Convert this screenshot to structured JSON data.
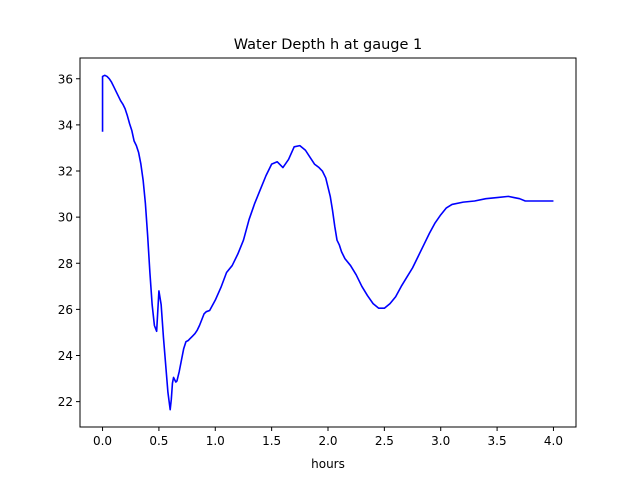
{
  "chart_data": {
    "type": "line",
    "title": "Water Depth h at gauge 1",
    "xlabel": "hours",
    "ylabel": "",
    "xlim": [
      -0.2,
      4.2
    ],
    "ylim": [
      20.9,
      36.9
    ],
    "xticks": [
      0.0,
      0.5,
      1.0,
      1.5,
      2.0,
      2.5,
      3.0,
      3.5,
      4.0
    ],
    "xtick_labels": [
      "0.0",
      "0.5",
      "1.0",
      "1.5",
      "2.0",
      "2.5",
      "3.0",
      "3.5",
      "4.0"
    ],
    "yticks": [
      22,
      24,
      26,
      28,
      30,
      32,
      34,
      36
    ],
    "ytick_labels": [
      "22",
      "24",
      "26",
      "28",
      "30",
      "32",
      "34",
      "36"
    ],
    "grid": false,
    "series": [
      {
        "color": "#0000ff",
        "x": [
          0.0,
          0.0,
          0.02,
          0.04,
          0.06,
          0.08,
          0.1,
          0.12,
          0.14,
          0.16,
          0.18,
          0.2,
          0.22,
          0.24,
          0.26,
          0.28,
          0.3,
          0.32,
          0.34,
          0.36,
          0.38,
          0.4,
          0.42,
          0.44,
          0.46,
          0.48,
          0.5,
          0.52,
          0.54,
          0.56,
          0.58,
          0.6,
          0.61,
          0.62,
          0.63,
          0.64,
          0.65,
          0.66,
          0.68,
          0.7,
          0.72,
          0.73,
          0.74,
          0.76,
          0.77,
          0.78,
          0.8,
          0.82,
          0.84,
          0.86,
          0.88,
          0.9,
          0.92,
          0.95,
          1.0,
          1.05,
          1.1,
          1.15,
          1.2,
          1.25,
          1.3,
          1.35,
          1.4,
          1.45,
          1.5,
          1.55,
          1.6,
          1.65,
          1.7,
          1.75,
          1.8,
          1.84,
          1.88,
          1.92,
          1.95,
          1.98,
          2.0,
          2.02,
          2.04,
          2.06,
          2.08,
          2.1,
          2.12,
          2.15,
          2.2,
          2.25,
          2.3,
          2.35,
          2.4,
          2.45,
          2.5,
          2.55,
          2.6,
          2.65,
          2.7,
          2.75,
          2.8,
          2.85,
          2.9,
          2.95,
          3.0,
          3.05,
          3.1,
          3.2,
          3.3,
          3.4,
          3.5,
          3.6,
          3.65,
          3.7,
          3.75,
          3.8,
          3.85,
          3.88,
          3.92,
          3.96,
          4.0
        ],
        "y": [
          33.7,
          36.1,
          36.15,
          36.1,
          36.0,
          35.85,
          35.65,
          35.45,
          35.25,
          35.05,
          34.9,
          34.7,
          34.4,
          34.05,
          33.75,
          33.3,
          33.1,
          32.8,
          32.3,
          31.6,
          30.6,
          29.2,
          27.6,
          26.2,
          25.3,
          25.05,
          26.8,
          26.2,
          24.8,
          23.6,
          22.4,
          21.65,
          22.1,
          22.8,
          23.05,
          22.95,
          22.85,
          22.9,
          23.3,
          23.8,
          24.3,
          24.45,
          24.6,
          24.65,
          24.7,
          24.75,
          24.85,
          24.95,
          25.1,
          25.3,
          25.55,
          25.8,
          25.9,
          25.95,
          26.4,
          26.95,
          27.6,
          27.9,
          28.4,
          29.0,
          29.9,
          30.6,
          31.2,
          31.8,
          32.3,
          32.4,
          32.15,
          32.5,
          33.05,
          33.1,
          32.9,
          32.6,
          32.3,
          32.15,
          32.0,
          31.7,
          31.3,
          30.9,
          30.3,
          29.6,
          29.0,
          28.8,
          28.5,
          28.2,
          27.9,
          27.5,
          27.0,
          26.6,
          26.25,
          26.05,
          26.05,
          26.25,
          26.55,
          27.0,
          27.4,
          27.8,
          28.3,
          28.8,
          29.3,
          29.75,
          30.1,
          30.4,
          30.55,
          30.65,
          30.7,
          30.8,
          30.85,
          30.9,
          30.85,
          30.8,
          30.7,
          30.7,
          30.7,
          30.7,
          30.7,
          30.7,
          30.7
        ]
      }
    ]
  }
}
